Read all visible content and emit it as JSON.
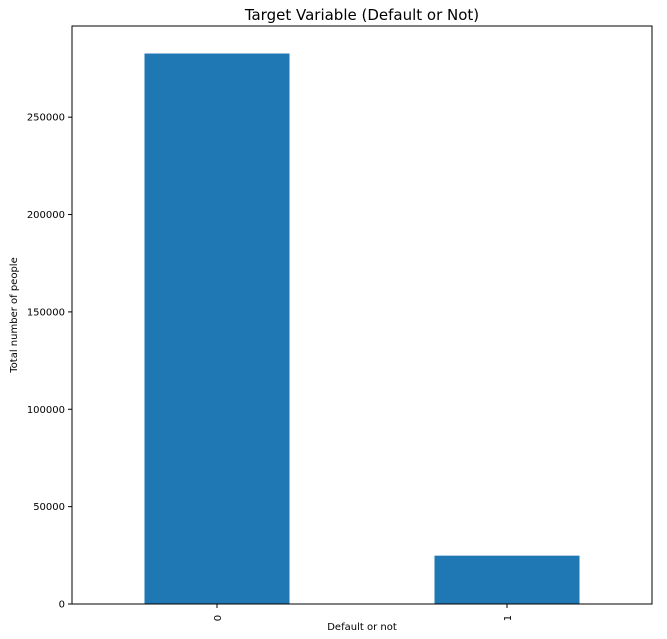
{
  "chart_data": {
    "type": "bar",
    "title": "Target Variable (Default or Not)",
    "xlabel": "Default or not",
    "ylabel": "Total number of people",
    "categories": [
      "0",
      "1"
    ],
    "values": [
      282686,
      24825
    ],
    "ylim": [
      0,
      296820
    ],
    "yticks": [
      0,
      50000,
      100000,
      150000,
      200000,
      250000
    ],
    "ytick_labels": [
      "0",
      "50000",
      "100000",
      "150000",
      "200000",
      "250000"
    ],
    "bar_color": "#1f77b4",
    "grid": false,
    "legend": null
  }
}
